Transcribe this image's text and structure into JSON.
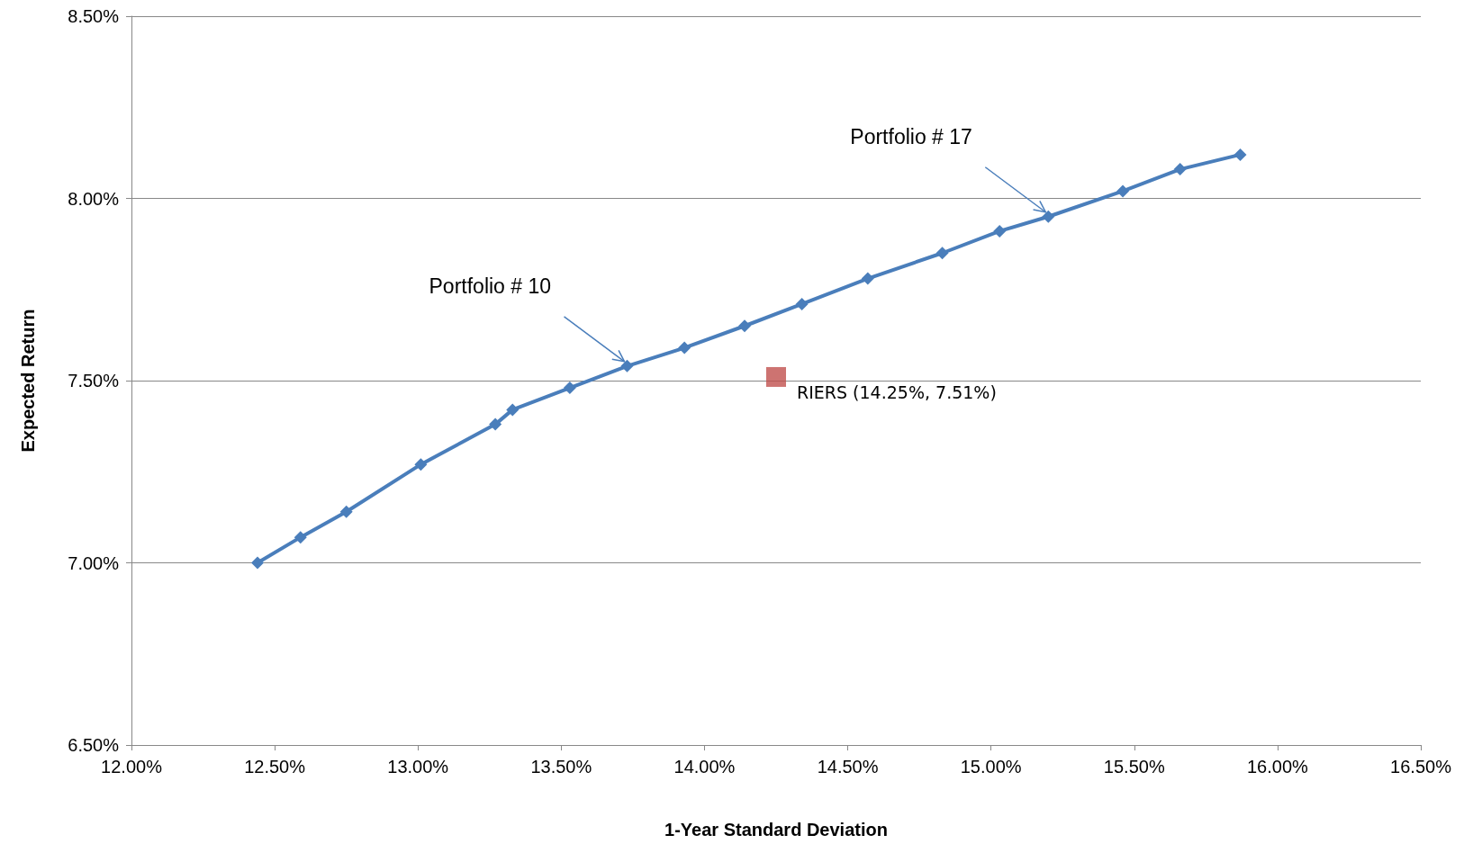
{
  "chart_data": {
    "type": "line",
    "xlabel": "1-Year Standard Deviation",
    "ylabel": "Expected Return",
    "xlim": [
      12,
      16.5
    ],
    "xticks": [
      {
        "value": 12,
        "label": "12.00%"
      },
      {
        "value": 12.5,
        "label": "12.50%"
      },
      {
        "value": 13,
        "label": "13.00%"
      },
      {
        "value": 13.5,
        "label": "13.50%"
      },
      {
        "value": 14,
        "label": "14.00%"
      },
      {
        "value": 14.5,
        "label": "14.50%"
      },
      {
        "value": 15,
        "label": "15.00%"
      },
      {
        "value": 15.5,
        "label": "15.50%"
      },
      {
        "value": 16,
        "label": "16.00%"
      },
      {
        "value": 16.5,
        "label": "16.50%"
      }
    ],
    "ylim": [
      6.5,
      8.5
    ],
    "yticks": [
      {
        "value": 6.5,
        "label": "6.50%"
      },
      {
        "value": 7,
        "label": "7.00%"
      },
      {
        "value": 7.5,
        "label": "7.50%"
      },
      {
        "value": 8,
        "label": "8.00%"
      },
      {
        "value": 8.5,
        "label": "8.50%"
      }
    ],
    "grid": "y",
    "series": [
      {
        "color": "#4a7ebb",
        "marker": "diamond",
        "line_style": "solid",
        "x": [
          12.44,
          12.59,
          12.75,
          13.01,
          13.27,
          13.33,
          13.53,
          13.73,
          13.93,
          14.14,
          14.34,
          14.57,
          14.83,
          15.03,
          15.2,
          15.46,
          15.66,
          15.87
        ],
        "values": [
          7.0,
          7.07,
          7.14,
          7.27,
          7.38,
          7.42,
          7.48,
          7.54,
          7.59,
          7.65,
          7.71,
          7.78,
          7.85,
          7.91,
          7.95,
          8.02,
          8.08,
          8.12
        ]
      },
      {
        "type": "scatter",
        "color": "#c0504d",
        "marker": "square",
        "x": [
          14.25
        ],
        "values": [
          7.51
        ]
      }
    ],
    "annotations": [
      {
        "text": "Portfolio # 10",
        "x": 13.73,
        "y": 7.54
      },
      {
        "text": "Portfolio # 17",
        "x": 15.2,
        "y": 7.95
      },
      {
        "text": "RIERS (14.25%, 7.51%)",
        "x": 14.25,
        "y": 7.51
      }
    ]
  }
}
